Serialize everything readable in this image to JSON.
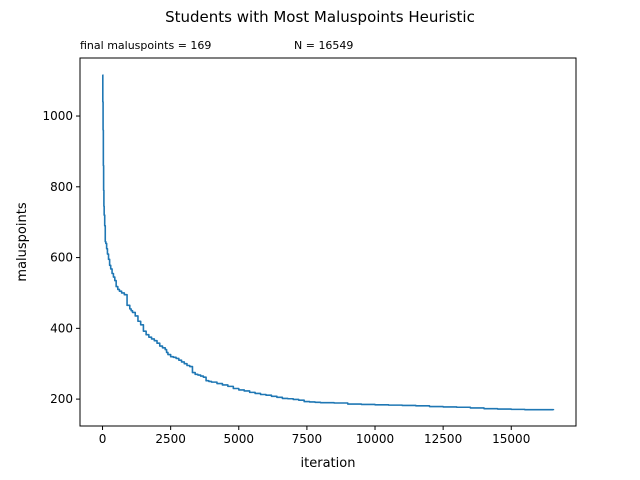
{
  "chart_data": {
    "type": "line",
    "title": "Students with Most Maluspoints Heuristic",
    "subtitle_left": "final maluspoints = 169",
    "subtitle_right": "N = 16549",
    "xlabel": "iteration",
    "ylabel": "maluspoints",
    "xlim": [
      -827,
      17376
    ],
    "ylim": [
      124,
      1164
    ],
    "xticks": [
      0,
      2500,
      5000,
      7500,
      10000,
      12500,
      15000
    ],
    "xtick_labels": [
      "0",
      "2500",
      "5000",
      "7500",
      "10000",
      "12500",
      "15000"
    ],
    "yticks": [
      200,
      400,
      600,
      800,
      1000
    ],
    "ytick_labels": [
      "200",
      "400",
      "600",
      "800",
      "1000"
    ],
    "grid": false,
    "legend": "none",
    "color": "#1f77b4",
    "series": [
      {
        "x": [
          0,
          10,
          20,
          30,
          40,
          50,
          60,
          80,
          100,
          120,
          150,
          180,
          220,
          260,
          300,
          350,
          400,
          450,
          500,
          560,
          620,
          700,
          800,
          900,
          1000,
          1050,
          1100,
          1200,
          1300,
          1400,
          1500,
          1600,
          1700,
          1800,
          1900,
          2000,
          2100,
          2200,
          2300,
          2350,
          2400,
          2500,
          2600,
          2700,
          2800,
          2900,
          3000,
          3100,
          3200,
          3300,
          3400,
          3500,
          3600,
          3700,
          3800,
          3900,
          4000,
          4200,
          4400,
          4600,
          4800,
          5000,
          5200,
          5400,
          5600,
          5800,
          6000,
          6200,
          6400,
          6600,
          6800,
          7000,
          7200,
          7400,
          7600,
          7800,
          8000,
          8500,
          9000,
          9500,
          10000,
          10500,
          11000,
          11500,
          12000,
          12500,
          13000,
          13500,
          14000,
          14500,
          15000,
          15500,
          16000,
          16549
        ],
        "y": [
          1116,
          1040,
          960,
          860,
          790,
          745,
          720,
          690,
          645,
          640,
          625,
          610,
          595,
          578,
          568,
          555,
          545,
          535,
          518,
          510,
          505,
          500,
          495,
          465,
          455,
          450,
          445,
          435,
          420,
          410,
          392,
          382,
          375,
          370,
          365,
          358,
          350,
          345,
          340,
          332,
          326,
          320,
          318,
          315,
          310,
          305,
          300,
          295,
          292,
          275,
          270,
          268,
          265,
          262,
          252,
          250,
          248,
          244,
          240,
          236,
          230,
          226,
          223,
          219,
          216,
          213,
          211,
          208,
          205,
          202,
          201,
          199,
          197,
          193,
          192,
          191,
          190,
          189,
          186,
          185,
          184,
          183,
          182,
          181,
          179,
          178,
          177,
          175,
          173,
          172,
          171,
          170,
          170,
          169
        ]
      }
    ]
  }
}
